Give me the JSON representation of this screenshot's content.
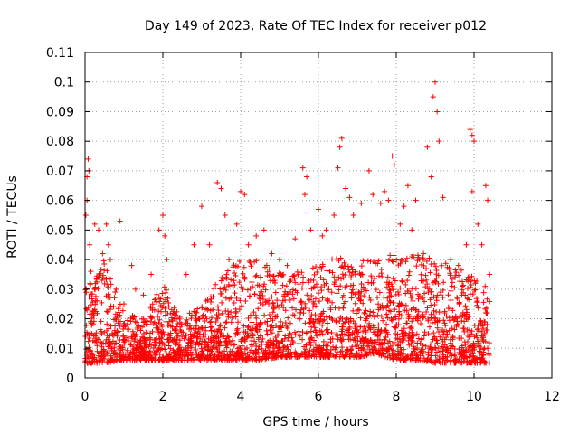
{
  "chart_data": {
    "type": "scatter",
    "title": "Day 149 of 2023, Rate Of TEC Index for receiver p012",
    "xlabel": "GPS time / hours",
    "ylabel": "ROTI / TECUs",
    "xlim": [
      0,
      12
    ],
    "ylim": [
      0,
      0.11
    ],
    "xticks": [
      0,
      2,
      4,
      6,
      8,
      10,
      12
    ],
    "yticks": [
      0,
      0.01,
      0.02,
      0.03,
      0.04,
      0.05,
      0.06,
      0.07,
      0.08,
      0.09,
      0.1,
      0.11
    ],
    "xtick_labels": [
      "0",
      "2",
      "4",
      "6",
      "8",
      "10",
      "12"
    ],
    "ytick_labels": [
      "0",
      "0.01",
      "0.02",
      "0.03",
      "0.04",
      "0.05",
      "0.06",
      "0.07",
      "0.08",
      "0.09",
      "0.1",
      "0.11"
    ],
    "grid": true,
    "marker": "+",
    "color": "#ff0000",
    "series": [
      {
        "name": "ROTI",
        "points": [
          [
            0.02,
            0.055
          ],
          [
            0.05,
            0.068
          ],
          [
            0.08,
            0.074
          ],
          [
            0.1,
            0.07
          ],
          [
            0.05,
            0.06
          ],
          [
            0.12,
            0.045
          ],
          [
            0.15,
            0.036
          ],
          [
            0.25,
            0.052
          ],
          [
            0.35,
            0.05
          ],
          [
            0.45,
            0.042
          ],
          [
            0.55,
            0.052
          ],
          [
            0.6,
            0.045
          ],
          [
            0.65,
            0.04
          ],
          [
            0.8,
            0.03
          ],
          [
            0.9,
            0.053
          ],
          [
            1.0,
            0.025
          ],
          [
            1.2,
            0.038
          ],
          [
            1.3,
            0.03
          ],
          [
            1.5,
            0.028
          ],
          [
            1.7,
            0.035
          ],
          [
            1.9,
            0.05
          ],
          [
            2.0,
            0.055
          ],
          [
            2.05,
            0.048
          ],
          [
            2.1,
            0.04
          ],
          [
            2.3,
            0.02
          ],
          [
            2.6,
            0.035
          ],
          [
            2.8,
            0.045
          ],
          [
            3.0,
            0.058
          ],
          [
            3.2,
            0.045
          ],
          [
            3.4,
            0.066
          ],
          [
            3.5,
            0.064
          ],
          [
            3.6,
            0.055
          ],
          [
            3.7,
            0.04
          ],
          [
            3.9,
            0.052
          ],
          [
            4.0,
            0.063
          ],
          [
            4.1,
            0.062
          ],
          [
            4.2,
            0.045
          ],
          [
            4.4,
            0.048
          ],
          [
            4.6,
            0.05
          ],
          [
            4.8,
            0.042
          ],
          [
            5.0,
            0.04
          ],
          [
            5.2,
            0.038
          ],
          [
            5.4,
            0.047
          ],
          [
            5.6,
            0.071
          ],
          [
            5.65,
            0.062
          ],
          [
            5.7,
            0.068
          ],
          [
            5.8,
            0.05
          ],
          [
            6.0,
            0.057
          ],
          [
            6.1,
            0.048
          ],
          [
            6.2,
            0.05
          ],
          [
            6.4,
            0.055
          ],
          [
            6.5,
            0.071
          ],
          [
            6.55,
            0.078
          ],
          [
            6.6,
            0.081
          ],
          [
            6.7,
            0.064
          ],
          [
            6.8,
            0.061
          ],
          [
            6.9,
            0.055
          ],
          [
            7.1,
            0.059
          ],
          [
            7.3,
            0.07
          ],
          [
            7.4,
            0.062
          ],
          [
            7.6,
            0.059
          ],
          [
            7.7,
            0.063
          ],
          [
            7.8,
            0.06
          ],
          [
            7.9,
            0.075
          ],
          [
            7.95,
            0.072
          ],
          [
            8.1,
            0.052
          ],
          [
            8.2,
            0.058
          ],
          [
            8.3,
            0.065
          ],
          [
            8.4,
            0.05
          ],
          [
            8.5,
            0.06
          ],
          [
            8.7,
            0.042
          ],
          [
            8.8,
            0.078
          ],
          [
            8.9,
            0.068
          ],
          [
            8.95,
            0.095
          ],
          [
            9.0,
            0.1
          ],
          [
            9.05,
            0.09
          ],
          [
            9.1,
            0.08
          ],
          [
            9.2,
            0.061
          ],
          [
            9.4,
            0.04
          ],
          [
            9.6,
            0.038
          ],
          [
            9.8,
            0.045
          ],
          [
            9.9,
            0.084
          ],
          [
            9.95,
            0.082
          ],
          [
            10.0,
            0.08
          ],
          [
            9.95,
            0.063
          ],
          [
            10.1,
            0.052
          ],
          [
            10.2,
            0.045
          ],
          [
            10.3,
            0.065
          ],
          [
            10.35,
            0.06
          ],
          [
            10.4,
            0.035
          ]
        ]
      }
    ],
    "dense_envelope": {
      "note": "lower / upper bounds of the dense background band of ROTI samples, sampled every 0.5 h from 0 to 10.5 h",
      "x": [
        0,
        0.5,
        1.0,
        1.5,
        2.0,
        2.5,
        3.0,
        3.5,
        4.0,
        4.5,
        5.0,
        5.5,
        6.0,
        6.5,
        7.0,
        7.5,
        8.0,
        8.5,
        9.0,
        9.5,
        10.0,
        10.5
      ],
      "low": [
        0.005,
        0.005,
        0.006,
        0.006,
        0.006,
        0.006,
        0.006,
        0.006,
        0.006,
        0.006,
        0.007,
        0.007,
        0.007,
        0.007,
        0.007,
        0.008,
        0.006,
        0.006,
        0.005,
        0.005,
        0.005,
        0.005
      ],
      "high": [
        0.03,
        0.04,
        0.022,
        0.02,
        0.032,
        0.02,
        0.025,
        0.035,
        0.04,
        0.04,
        0.036,
        0.036,
        0.038,
        0.042,
        0.04,
        0.04,
        0.044,
        0.042,
        0.04,
        0.038,
        0.034,
        0.03
      ]
    }
  }
}
